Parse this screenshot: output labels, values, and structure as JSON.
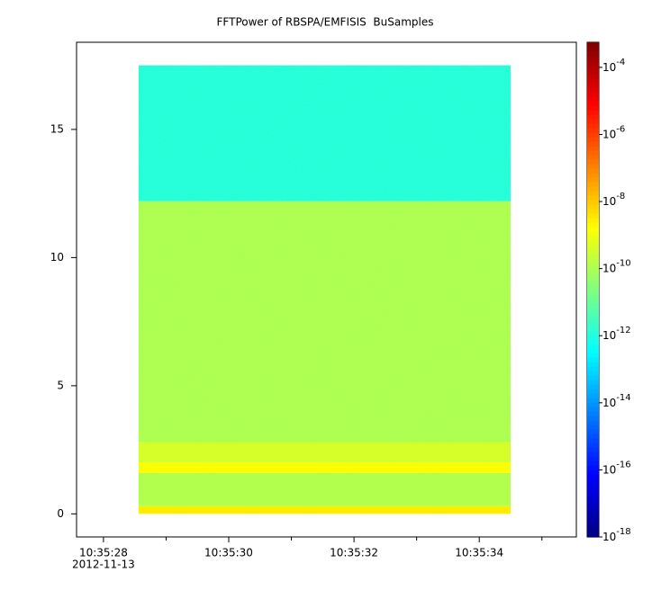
{
  "chart_data": {
    "type": "spectrogram",
    "title": "FFTPower of RBSPA/EMFISIS  BuSamples",
    "x_bins": [
      28.56,
      34.5
    ],
    "y_bins": [
      0,
      0.3,
      1.6,
      2.0,
      2.8,
      12.2,
      17.5
    ],
    "values": [
      [
        3e-09
      ],
      [
        1.2e-10
      ],
      [
        1.5e-09
      ],
      [
        4e-10
      ],
      [
        1e-10
      ],
      [
        1e-12
      ]
    ],
    "xlim": [
      27.57,
      35.55
    ],
    "xticks": [
      {
        "value": 28,
        "label": "10:35:28"
      },
      {
        "value": 30,
        "label": "10:35:30"
      },
      {
        "value": 32,
        "label": "10:35:32"
      },
      {
        "value": 34,
        "label": "10:35:34"
      }
    ],
    "xminor": [
      29,
      31,
      33,
      35
    ],
    "x_date_label": "2012-11-13",
    "ylim": [
      -0.9,
      18.4
    ],
    "yticks": [
      0,
      5,
      10,
      15
    ],
    "zlim": [
      1e-18,
      0.00056
    ],
    "zscale": "log",
    "colormap": "jet",
    "zticks": [
      {
        "value": 0.0001,
        "label": "10-4"
      },
      {
        "value": 1e-06,
        "label": "10-6"
      },
      {
        "value": 1e-08,
        "label": "10-8"
      },
      {
        "value": 1e-10,
        "label": "10-10"
      },
      {
        "value": 1e-12,
        "label": "10-12"
      },
      {
        "value": 1e-14,
        "label": "10-14"
      },
      {
        "value": 1e-16,
        "label": "10-16"
      },
      {
        "value": 1e-18,
        "label": "10-18"
      }
    ]
  }
}
